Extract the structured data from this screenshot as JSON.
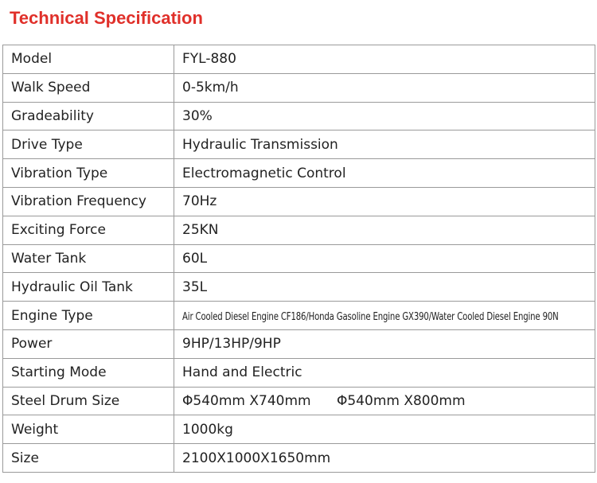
{
  "title": "Technical Specification",
  "table": {
    "rows": [
      [
        "Model",
        "FYL-880"
      ],
      [
        "Walk Speed",
        "0-5km/h"
      ],
      [
        "Gradeability",
        "30%"
      ],
      [
        "Drive Type",
        "Hydraulic Transmission"
      ],
      [
        "Vibration Type",
        "Electromagnetic Control"
      ],
      [
        "Vibration Frequency",
        "70Hz"
      ],
      [
        "Exciting Force",
        "25KN"
      ],
      [
        "Water Tank",
        "60L"
      ],
      [
        "Hydraulic Oil Tank",
        "35L"
      ],
      [
        "Engine Type",
        "Air Cooled Diesel Engine CF186/Honda Gasoline Engine GX390/Water Cooled Diesel Engine 90N"
      ],
      [
        "Power",
        "9HP/13HP/9HP"
      ],
      [
        "Starting Mode",
        "Hand and Electric"
      ],
      [
        "Steel Drum Size",
        "Φ540mm X740mm      Φ540mm X800mm"
      ],
      [
        "Weight",
        "1000kg"
      ],
      [
        "Size",
        "2100X1000X1650mm"
      ]
    ]
  }
}
